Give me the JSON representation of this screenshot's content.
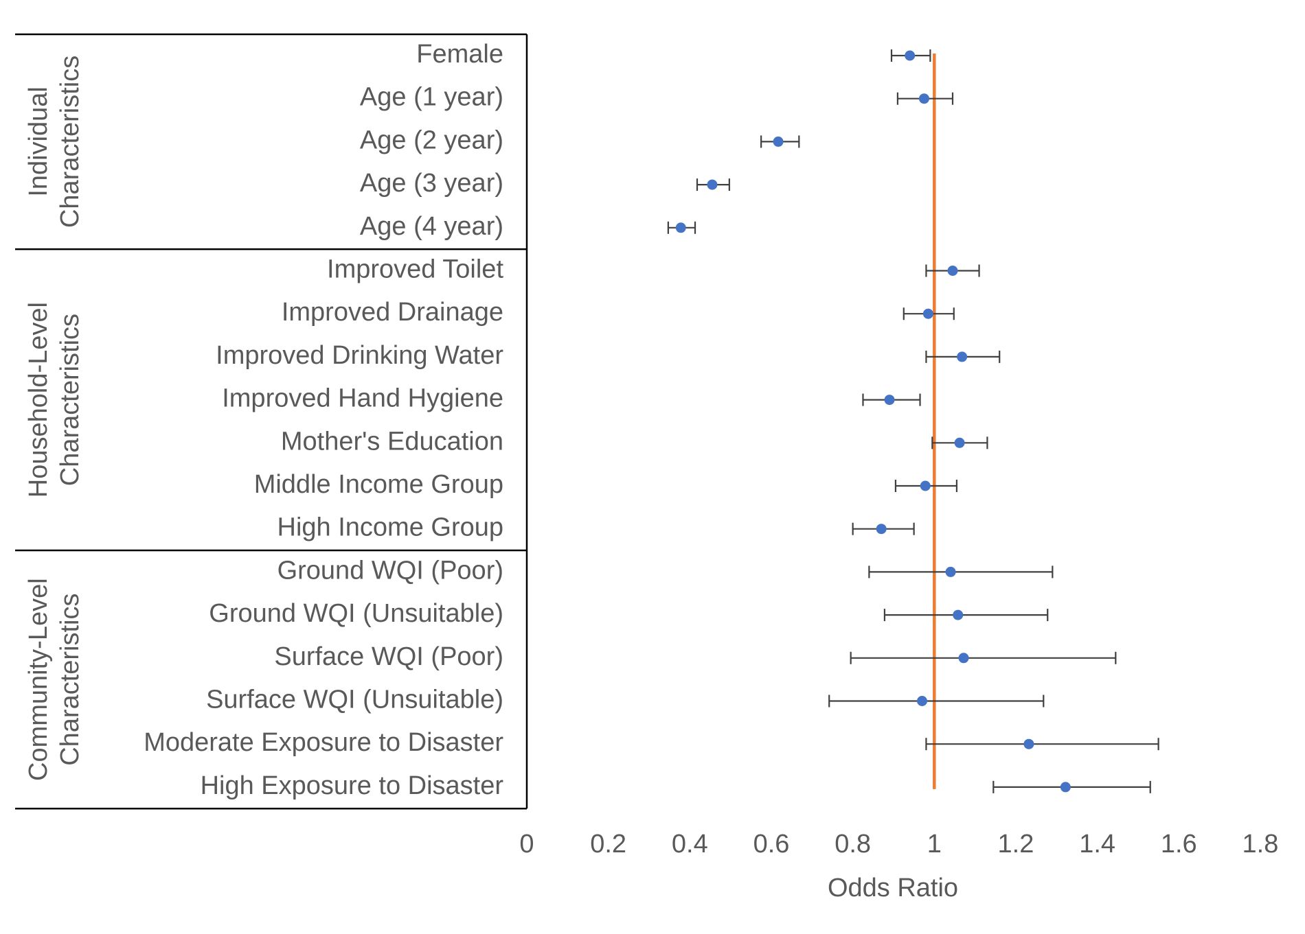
{
  "chart_data": {
    "type": "scatter",
    "subtype": "forest-plot",
    "title": "",
    "xlabel": "Odds Ratio",
    "ylabel": "",
    "xlim": [
      0,
      1.8
    ],
    "xticks": [
      "0",
      "0.2",
      "0.4",
      "0.6",
      "0.8",
      "1",
      "1.2",
      "1.4",
      "1.6",
      "1.8"
    ],
    "tick_values": [
      0,
      0.2,
      0.4,
      0.6,
      0.8,
      1.0,
      1.2,
      1.4,
      1.6,
      1.8
    ],
    "reference_line": 1.0,
    "colors": {
      "point": "#4472C4",
      "reference": "#ED7D31",
      "error_bar": "#404040",
      "text": "#595959"
    },
    "groups": [
      {
        "name": "Individual Characteristics",
        "line1": "Individual",
        "line2": "Characteristics",
        "start": 0,
        "end": 4
      },
      {
        "name": "Household-Level Characteristics",
        "line1": "Household-Level",
        "line2": "Characteristics",
        "start": 5,
        "end": 11
      },
      {
        "name": "Community-Level Characteristics",
        "line1": "Community-Level",
        "line2": "Characteristics",
        "start": 12,
        "end": 17
      }
    ],
    "rows": [
      {
        "label": "Female",
        "or": 0.94,
        "lo": 0.895,
        "hi": 0.99
      },
      {
        "label": "Age (1 year)",
        "or": 0.975,
        "lo": 0.91,
        "hi": 1.045
      },
      {
        "label": "Age (2 year)",
        "or": 0.617,
        "lo": 0.575,
        "hi": 0.668
      },
      {
        "label": "Age (3 year)",
        "or": 0.455,
        "lo": 0.418,
        "hi": 0.497
      },
      {
        "label": "Age (4 year)",
        "or": 0.378,
        "lo": 0.347,
        "hi": 0.413
      },
      {
        "label": "Improved Toilet",
        "or": 1.045,
        "lo": 0.98,
        "hi": 1.11
      },
      {
        "label": "Improved Drainage",
        "or": 0.985,
        "lo": 0.925,
        "hi": 1.048
      },
      {
        "label": "Improved Drinking Water",
        "or": 1.068,
        "lo": 0.98,
        "hi": 1.16
      },
      {
        "label": "Improved Hand Hygiene",
        "or": 0.89,
        "lo": 0.825,
        "hi": 0.965
      },
      {
        "label": "Mother's Education",
        "or": 1.062,
        "lo": 0.995,
        "hi": 1.13
      },
      {
        "label": "Middle Income Group",
        "or": 0.978,
        "lo": 0.905,
        "hi": 1.055
      },
      {
        "label": "High Income Group",
        "or": 0.87,
        "lo": 0.8,
        "hi": 0.95
      },
      {
        "label": "Ground WQI (Poor)",
        "or": 1.04,
        "lo": 0.84,
        "hi": 1.29
      },
      {
        "label": "Ground WQI (Unsuitable)",
        "or": 1.058,
        "lo": 0.878,
        "hi": 1.278
      },
      {
        "label": "Surface WQI (Poor)",
        "or": 1.072,
        "lo": 0.795,
        "hi": 1.445
      },
      {
        "label": "Surface WQI (Unsuitable)",
        "or": 0.97,
        "lo": 0.742,
        "hi": 1.268
      },
      {
        "label": "Moderate Exposure to Disaster",
        "or": 1.232,
        "lo": 0.98,
        "hi": 1.55
      },
      {
        "label": "High Exposure to Disaster",
        "or": 1.322,
        "lo": 1.145,
        "hi": 1.53
      }
    ]
  }
}
